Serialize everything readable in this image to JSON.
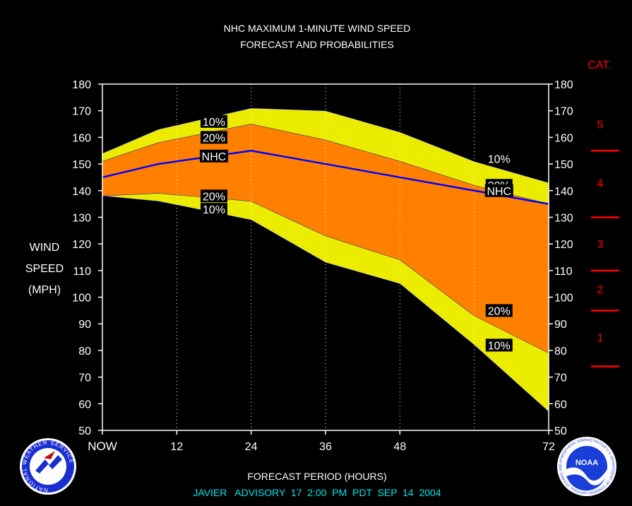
{
  "chart_data": {
    "type": "area",
    "title_line1": "NHC MAXIMUM 1-MINUTE WIND SPEED",
    "title_line2": "FORECAST AND PROBABILITIES",
    "ylabel_lines": [
      "WIND",
      "SPEED",
      "(MPH)"
    ],
    "xlabel": "FORECAST PERIOD (HOURS)",
    "footer": "JAVIER   ADVISORY  17  2:00  PM  PDT  SEP  14  2004",
    "cat_label": "CAT.",
    "xlim": [
      0,
      72
    ],
    "ylim": [
      50,
      180
    ],
    "y_ticks": [
      50,
      60,
      70,
      80,
      90,
      100,
      110,
      120,
      130,
      140,
      150,
      160,
      170,
      180
    ],
    "x_ticks": [
      {
        "x": 0,
        "label": "NOW"
      },
      {
        "x": 12,
        "label": "12"
      },
      {
        "x": 24,
        "label": "24"
      },
      {
        "x": 36,
        "label": "36"
      },
      {
        "x": 48,
        "label": "48"
      },
      {
        "x": 72,
        "label": "72"
      }
    ],
    "dotted_gridlines_x": [
      12,
      24,
      36,
      48,
      60
    ],
    "x": [
      0,
      9,
      24,
      36,
      48,
      60,
      72
    ],
    "series": [
      {
        "name": "10%",
        "band": "upper",
        "values": [
          154,
          163,
          171,
          170,
          162,
          151,
          143
        ]
      },
      {
        "name": "20%",
        "band": "upper",
        "values": [
          151,
          158,
          165,
          159,
          151,
          142,
          135
        ]
      },
      {
        "name": "NHC",
        "values": [
          145,
          150,
          155,
          150,
          145,
          140,
          135
        ]
      },
      {
        "name": "20%",
        "band": "lower",
        "values": [
          138,
          139,
          136,
          123,
          114,
          93,
          79
        ]
      },
      {
        "name": "10%",
        "band": "lower",
        "values": [
          138,
          136,
          129,
          113,
          105,
          82,
          57
        ]
      }
    ],
    "labels": [
      {
        "text": "10%",
        "x": 18,
        "y": 166
      },
      {
        "text": "20%",
        "x": 18,
        "y": 160
      },
      {
        "text": "NHC",
        "x": 18,
        "y": 153
      },
      {
        "text": "20%",
        "x": 18,
        "y": 138
      },
      {
        "text": "10%",
        "x": 18,
        "y": 133
      },
      {
        "text": "10%",
        "x": 64,
        "y": 152
      },
      {
        "text": "20%",
        "x": 64,
        "y": 142
      },
      {
        "text": "NHC",
        "x": 64,
        "y": 140
      },
      {
        "text": "20%",
        "x": 64,
        "y": 95
      },
      {
        "text": "10%",
        "x": 64,
        "y": 82
      }
    ],
    "categories_scale": [
      {
        "label": "5",
        "y": 165
      },
      {
        "label": "4",
        "y": 143
      },
      {
        "label": "3",
        "y": 120
      },
      {
        "label": "2",
        "y": 103
      },
      {
        "label": "1",
        "y": 85
      }
    ],
    "category_thresholds": [
      155,
      130,
      110,
      95,
      74
    ],
    "colors": {
      "band10": "#ecec00",
      "band20": "#ff8000",
      "nhc_line": "#0000ff",
      "cat": "#ff0000",
      "footer": "#00e6ee",
      "axes": "#ffffff"
    }
  },
  "logos": {
    "left": "NATIONAL WEATHER SERVICE",
    "right_center": "NOAA",
    "right_ring": "NATIONAL OCEANIC AND ATMOSPHERIC ADMINISTRATION U.S. DEPARTMENT OF COMMERCE"
  }
}
